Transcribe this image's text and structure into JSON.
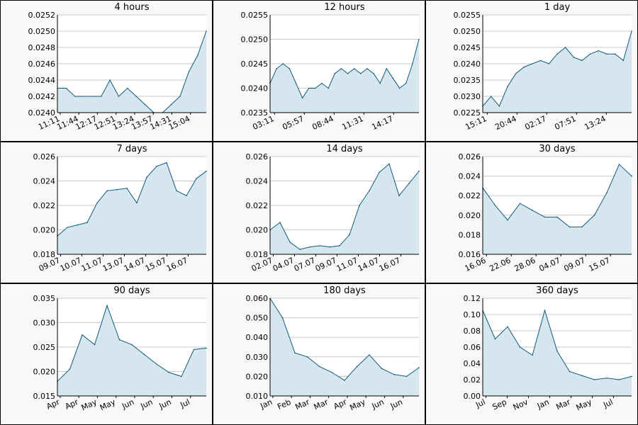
{
  "chart_data": [
    {
      "type": "area",
      "title": "4 hours",
      "ylim": [
        0.024,
        0.0252
      ],
      "yticks": [
        "0.0240",
        "0.0242",
        "0.0244",
        "0.0246",
        "0.0248",
        "0.0250",
        "0.0252"
      ],
      "xticks": [
        "11:11",
        "11:44",
        "12:17",
        "12:51",
        "13:24",
        "13:57",
        "14:31",
        "15:04"
      ],
      "x": [
        "11:11",
        "11:30",
        "11:44",
        "12:00",
        "12:17",
        "12:35",
        "12:51",
        "13:05",
        "13:24",
        "13:45",
        "13:57",
        "14:10",
        "14:31",
        "14:45",
        "15:04",
        "15:15",
        "15:20",
        "15:30"
      ],
      "values": [
        0.0243,
        0.0243,
        0.0242,
        0.0242,
        0.0242,
        0.0242,
        0.0244,
        0.0242,
        0.0243,
        0.0242,
        0.0241,
        0.024,
        0.024,
        0.0241,
        0.0242,
        0.0245,
        0.0247,
        0.025
      ],
      "grid": true
    },
    {
      "type": "area",
      "title": "12 hours",
      "ylim": [
        0.0235,
        0.0255
      ],
      "yticks": [
        "0.0235",
        "0.0240",
        "0.0245",
        "0.0250",
        "0.0255"
      ],
      "xticks": [
        "03:11",
        "05:57",
        "08:44",
        "11:31",
        "14:17"
      ],
      "x": [
        "03:11",
        "03:40",
        "04:10",
        "04:40",
        "05:10",
        "05:30",
        "05:57",
        "06:30",
        "07:10",
        "07:50",
        "08:20",
        "08:44",
        "09:20",
        "10:00",
        "10:40",
        "11:10",
        "11:31",
        "12:10",
        "12:50",
        "13:30",
        "14:17",
        "14:40",
        "15:00",
        "15:11"
      ],
      "values": [
        0.0241,
        0.0244,
        0.0245,
        0.0244,
        0.0241,
        0.0238,
        0.024,
        0.024,
        0.0241,
        0.024,
        0.0243,
        0.0244,
        0.0243,
        0.0244,
        0.0243,
        0.0244,
        0.0243,
        0.0241,
        0.0244,
        0.0242,
        0.024,
        0.0241,
        0.0245,
        0.025
      ],
      "grid": true
    },
    {
      "type": "area",
      "title": "1 day",
      "ylim": [
        0.0225,
        0.0255
      ],
      "yticks": [
        "0.0225",
        "0.0230",
        "0.0235",
        "0.0240",
        "0.0245",
        "0.0250",
        "0.0255"
      ],
      "xticks": [
        "15:11",
        "20:44",
        "02:17",
        "07:51",
        "13:24"
      ],
      "x": [
        "15:11",
        "16:30",
        "18:00",
        "19:30",
        "20:44",
        "22:00",
        "23:30",
        "01:00",
        "02:17",
        "03:30",
        "05:00",
        "06:30",
        "07:51",
        "09:00",
        "10:30",
        "12:00",
        "13:24",
        "14:30",
        "15:11"
      ],
      "values": [
        0.0227,
        0.023,
        0.0227,
        0.0233,
        0.0237,
        0.0239,
        0.024,
        0.0241,
        0.024,
        0.0243,
        0.0245,
        0.0242,
        0.0241,
        0.0243,
        0.0244,
        0.0243,
        0.0243,
        0.0241,
        0.025
      ],
      "grid": true
    },
    {
      "type": "area",
      "title": "7 days",
      "ylim": [
        0.018,
        0.026
      ],
      "yticks": [
        "0.018",
        "0.020",
        "0.022",
        "0.024",
        "0.026"
      ],
      "xticks": [
        "09.07",
        "10.07",
        "11.07",
        "13.07",
        "14.07",
        "15.07",
        "16.07"
      ],
      "x": [
        "09.07",
        "09.5",
        "10.07",
        "10.5",
        "11.07",
        "11.5",
        "12.07",
        "12.5",
        "13.07",
        "13.5",
        "14.07",
        "14.5",
        "15.07",
        "15.5",
        "16.07",
        "16.5"
      ],
      "values": [
        0.0195,
        0.0202,
        0.0204,
        0.0206,
        0.0222,
        0.0232,
        0.0233,
        0.0234,
        0.0222,
        0.0243,
        0.0252,
        0.0255,
        0.0232,
        0.0228,
        0.0242,
        0.0248
      ],
      "grid": true
    },
    {
      "type": "area",
      "title": "14 days",
      "ylim": [
        0.018,
        0.026
      ],
      "yticks": [
        "0.018",
        "0.020",
        "0.022",
        "0.024",
        "0.026"
      ],
      "xticks": [
        "02.07",
        "04.07",
        "07.07",
        "09.07",
        "11.07",
        "14.07",
        "16.07"
      ],
      "x": [
        "02.07",
        "03.07",
        "04.07",
        "05.07",
        "06.07",
        "07.07",
        "08.07",
        "09.07",
        "10.07",
        "11.07",
        "12.07",
        "13.07",
        "14.07",
        "15.07",
        "16.07",
        "16.5"
      ],
      "values": [
        0.02,
        0.0206,
        0.019,
        0.0184,
        0.0186,
        0.0187,
        0.0186,
        0.0187,
        0.0196,
        0.022,
        0.0232,
        0.0247,
        0.0254,
        0.0228,
        0.0238,
        0.0248
      ],
      "grid": true
    },
    {
      "type": "area",
      "title": "30 days",
      "ylim": [
        0.016,
        0.026
      ],
      "yticks": [
        "0.016",
        "0.018",
        "0.020",
        "0.022",
        "0.024",
        "0.026"
      ],
      "xticks": [
        "16.06",
        "22.06",
        "28.06",
        "04.07",
        "09.07",
        "15.07"
      ],
      "x": [
        "16.06",
        "19.06",
        "22.06",
        "25.06",
        "28.06",
        "01.07",
        "04.07",
        "07.07",
        "09.07",
        "11.07",
        "13.07",
        "15.07",
        "17.07"
      ],
      "values": [
        0.0228,
        0.021,
        0.0195,
        0.0212,
        0.0205,
        0.0198,
        0.0198,
        0.0188,
        0.0188,
        0.02,
        0.0223,
        0.0252,
        0.024
      ],
      "grid": true
    },
    {
      "type": "area",
      "title": "90 days",
      "ylim": [
        0.015,
        0.035
      ],
      "yticks": [
        "0.015",
        "0.020",
        "0.025",
        "0.030",
        "0.035"
      ],
      "xticks": [
        "Apr",
        "Apr",
        "May",
        "May",
        "Jun",
        "Jun",
        "Jun",
        "Jul"
      ],
      "x": [
        "Apr",
        "Apr",
        "Apr",
        "May",
        "May",
        "May",
        "Jun",
        "Jun",
        "Jun",
        "Jun",
        "Jul",
        "Jul",
        "Jul"
      ],
      "values": [
        0.018,
        0.0205,
        0.0275,
        0.0255,
        0.0335,
        0.0265,
        0.0255,
        0.0235,
        0.0215,
        0.0198,
        0.019,
        0.0245,
        0.0248
      ],
      "grid": true
    },
    {
      "type": "area",
      "title": "180 days",
      "ylim": [
        0.01,
        0.06
      ],
      "yticks": [
        "0.010",
        "0.020",
        "0.030",
        "0.040",
        "0.050",
        "0.060"
      ],
      "xticks": [
        "Jan",
        "Feb",
        "Mar",
        "Mar",
        "Apr",
        "May",
        "Jun",
        "Jun"
      ],
      "x": [
        "Jan",
        "Jan",
        "Feb",
        "Feb",
        "Mar",
        "Mar",
        "Apr",
        "Apr",
        "May",
        "May",
        "Jun",
        "Jun",
        "Jul"
      ],
      "values": [
        0.06,
        0.05,
        0.032,
        0.03,
        0.025,
        0.022,
        0.018,
        0.025,
        0.031,
        0.024,
        0.021,
        0.02,
        0.0245
      ],
      "grid": true
    },
    {
      "type": "area",
      "title": "360 days",
      "ylim": [
        0,
        0.12
      ],
      "yticks": [
        "0.00",
        "0.02",
        "0.04",
        "0.06",
        "0.08",
        "0.10",
        "0.12"
      ],
      "xticks": [
        "Jul",
        "Sep",
        "Nov",
        "Jan",
        "Mar",
        "May",
        "Jul"
      ],
      "x": [
        "Jul",
        "Aug",
        "Sep",
        "Oct",
        "Nov",
        "Dec",
        "Jan",
        "Feb",
        "Mar",
        "Apr",
        "May",
        "Jun",
        "Jul"
      ],
      "values": [
        0.105,
        0.07,
        0.085,
        0.06,
        0.05,
        0.105,
        0.055,
        0.03,
        0.025,
        0.02,
        0.022,
        0.02,
        0.024
      ],
      "grid": true
    }
  ]
}
